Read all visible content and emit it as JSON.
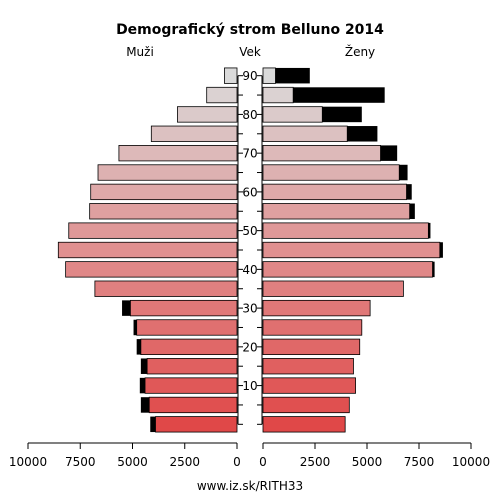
{
  "chart_data": {
    "type": "bar",
    "title": "Demografický strom Belluno 2014",
    "left_label": "Muži",
    "center_label": "Vek",
    "right_label": "Ženy",
    "footer": "www.iz.sk/RITH33",
    "age_groups": [
      "0-4",
      "5-9",
      "10-14",
      "15-19",
      "20-24",
      "25-29",
      "30-34",
      "35-39",
      "40-44",
      "45-49",
      "50-54",
      "55-59",
      "60-64",
      "65-69",
      "70-74",
      "75-79",
      "80-84",
      "85-89",
      "90+"
    ],
    "age_ticks": [
      10,
      20,
      30,
      40,
      50,
      60,
      70,
      80,
      90
    ],
    "x_ticks_left": [
      "10000",
      "7500",
      "5000",
      "2500",
      "0"
    ],
    "x_ticks_right": [
      "0",
      "2500",
      "5000",
      "7500",
      "10000"
    ],
    "xlim": [
      0,
      10000
    ],
    "series": [
      {
        "name": "Muži",
        "values": [
          3900,
          4200,
          4400,
          4300,
          4600,
          4800,
          5100,
          6800,
          8200,
          8550,
          8050,
          7050,
          7000,
          6650,
          5650,
          4100,
          2850,
          1450,
          600
        ],
        "excess": [
          250,
          400,
          250,
          300,
          200,
          150,
          400,
          0,
          0,
          0,
          0,
          0,
          0,
          0,
          0,
          0,
          0,
          0,
          0
        ]
      },
      {
        "name": "Ženy",
        "values": [
          3950,
          4150,
          4450,
          4350,
          4650,
          4750,
          5150,
          6750,
          8150,
          8500,
          7950,
          7050,
          6900,
          6550,
          5650,
          4050,
          2850,
          1450,
          600
        ],
        "excess": [
          0,
          0,
          0,
          0,
          0,
          0,
          0,
          0,
          100,
          150,
          100,
          250,
          250,
          400,
          800,
          1450,
          1900,
          4400,
          1650
        ]
      }
    ],
    "colors": {
      "young": "#e04848",
      "middle": "#e09090",
      "old": "#dadada",
      "excess": "#000000"
    },
    "grid": false
  }
}
